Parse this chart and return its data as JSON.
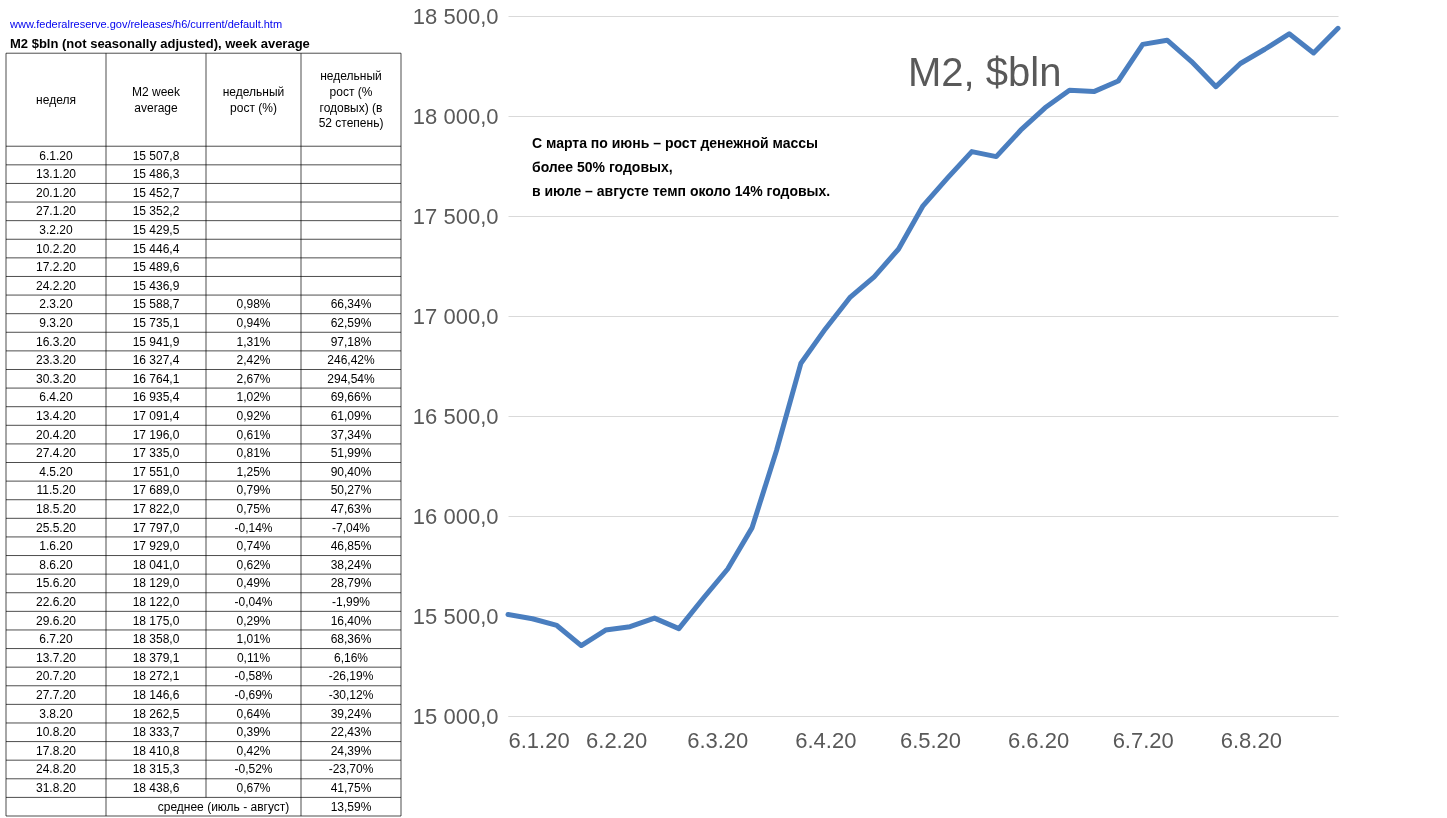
{
  "chart_data": [
    {
      "type": "other",
      "title": "M2 $bln (not seasonally adjusted), week average",
      "xlabel": "неделя",
      "categories": [
        "6.1.20",
        "13.1.20",
        "20.1.20",
        "27.1.20",
        "3.2.20",
        "10.2.20",
        "17.2.20",
        "24.2.20",
        "2.3.20",
        "9.3.20",
        "16.3.20",
        "23.3.20",
        "30.3.20",
        "6.4.20",
        "13.4.20",
        "20.4.20",
        "27.4.20",
        "4.5.20",
        "11.5.20",
        "18.5.20",
        "25.5.20",
        "1.6.20",
        "8.6.20",
        "15.6.20",
        "22.6.20",
        "29.6.20",
        "6.7.20",
        "13.7.20",
        "20.7.20",
        "27.7.20",
        "3.8.20",
        "10.8.20",
        "17.8.20",
        "24.8.20",
        "31.8.20"
      ],
      "series": [
        {
          "name": "M2 week average",
          "values": [
            15507.8,
            15486.3,
            15452.7,
            15352.2,
            15429.5,
            15446.4,
            15489.6,
            15436.9,
            15588.7,
            15735.1,
            15941.9,
            16327.4,
            16764.1,
            16935.4,
            17091.4,
            17196.0,
            17335.0,
            17551.0,
            17689.0,
            17822.0,
            17797.0,
            17929.0,
            18041.0,
            18129.0,
            18122.0,
            18175.0,
            18358.0,
            18379.1,
            18272.1,
            18146.6,
            18262.5,
            18333.7,
            18410.8,
            18315.3,
            18438.6
          ],
          "value_labels": [
            "15 507,8",
            "15 486,3",
            "15 452,7",
            "15 352,2",
            "15 429,5",
            "15 446,4",
            "15 489,6",
            "15 436,9",
            "15 588,7",
            "15 735,1",
            "15 941,9",
            "16 327,4",
            "16 764,1",
            "16 935,4",
            "17 091,4",
            "17 196,0",
            "17 335,0",
            "17 551,0",
            "17 689,0",
            "17 822,0",
            "17 797,0",
            "17 929,0",
            "18 041,0",
            "18 129,0",
            "18 122,0",
            "18 175,0",
            "18 358,0",
            "18 379,1",
            "18 272,1",
            "18 146,6",
            "18 262,5",
            "18 333,7",
            "18 410,8",
            "18 315,3",
            "18 438,6"
          ]
        },
        {
          "name": "недельный рост (%)",
          "values": [
            null,
            null,
            null,
            null,
            null,
            null,
            null,
            null,
            0.98,
            0.94,
            1.31,
            2.42,
            2.67,
            1.02,
            0.92,
            0.61,
            0.81,
            1.25,
            0.79,
            0.75,
            -0.14,
            0.74,
            0.62,
            0.49,
            -0.04,
            0.29,
            1.01,
            0.11,
            -0.58,
            -0.69,
            0.64,
            0.39,
            0.42,
            -0.52,
            0.67
          ],
          "value_labels": [
            null,
            null,
            null,
            null,
            null,
            null,
            null,
            null,
            "0,98%",
            "0,94%",
            "1,31%",
            "2,42%",
            "2,67%",
            "1,02%",
            "0,92%",
            "0,61%",
            "0,81%",
            "1,25%",
            "0,79%",
            "0,75%",
            "-0,14%",
            "0,74%",
            "0,62%",
            "0,49%",
            "-0,04%",
            "0,29%",
            "1,01%",
            "0,11%",
            "-0,58%",
            "-0,69%",
            "0,64%",
            "0,39%",
            "0,42%",
            "-0,52%",
            "0,67%"
          ]
        },
        {
          "name": "недельный рост (% годовых) (в 52 степень)",
          "values": [
            null,
            null,
            null,
            null,
            null,
            null,
            null,
            null,
            66.34,
            62.59,
            97.18,
            246.42,
            294.54,
            69.66,
            61.09,
            37.34,
            51.99,
            90.4,
            50.27,
            47.63,
            -7.04,
            46.85,
            38.24,
            28.79,
            -1.99,
            16.4,
            68.36,
            6.16,
            -26.19,
            -30.12,
            39.24,
            22.43,
            24.39,
            -23.7,
            41.75
          ],
          "value_labels": [
            null,
            null,
            null,
            null,
            null,
            null,
            null,
            null,
            "66,34%",
            "62,59%",
            "97,18%",
            "246,42%",
            "294,54%",
            "69,66%",
            "61,09%",
            "37,34%",
            "51,99%",
            "90,40%",
            "50,27%",
            "47,63%",
            "-7,04%",
            "46,85%",
            "38,24%",
            "28,79%",
            "-1,99%",
            "16,40%",
            "68,36%",
            "6,16%",
            "-26,19%",
            "-30,12%",
            "39,24%",
            "22,43%",
            "24,39%",
            "-23,70%",
            "41,75%"
          ]
        }
      ],
      "annotations": [
        "www.federalreserve.gov/releases/h6/current/default.htm",
        "среднее (июль - август)",
        "13,59%"
      ]
    },
    {
      "type": "line",
      "title": "M2, $bln",
      "grid": "y",
      "marker": "none",
      "line_style": "solid",
      "x": [
        "2020-01-06",
        "2020-01-13",
        "2020-01-20",
        "2020-01-27",
        "2020-02-03",
        "2020-02-10",
        "2020-02-17",
        "2020-02-24",
        "2020-03-02",
        "2020-03-09",
        "2020-03-16",
        "2020-03-23",
        "2020-03-30",
        "2020-04-06",
        "2020-04-13",
        "2020-04-20",
        "2020-04-27",
        "2020-05-04",
        "2020-05-11",
        "2020-05-18",
        "2020-05-25",
        "2020-06-01",
        "2020-06-08",
        "2020-06-15",
        "2020-06-22",
        "2020-06-29",
        "2020-07-06",
        "2020-07-13",
        "2020-07-20",
        "2020-07-27",
        "2020-08-03",
        "2020-08-10",
        "2020-08-17",
        "2020-08-24",
        "2020-08-31"
      ],
      "series": [
        {
          "color": "#4a7ebf",
          "values": [
            15507.8,
            15486.3,
            15452.7,
            15352.2,
            15429.5,
            15446.4,
            15489.6,
            15436.9,
            15588.7,
            15735.1,
            15941.9,
            16327.4,
            16764.1,
            16935.4,
            17091.4,
            17196.0,
            17335.0,
            17551.0,
            17689.0,
            17822.0,
            17797.0,
            17929.0,
            18041.0,
            18129.0,
            18122.0,
            18175.0,
            18358.0,
            18379.1,
            18272.1,
            18146.6,
            18262.5,
            18333.7,
            18410.8,
            18315.3,
            18438.6
          ]
        }
      ],
      "xlim": [
        "2020-01-06",
        "2020-08-31"
      ],
      "xticks": [
        {
          "value": "2020-01-06",
          "label": "6.1.20"
        },
        {
          "value": "2020-02-06",
          "label": "6.2.20"
        },
        {
          "value": "2020-03-06",
          "label": "6.3.20"
        },
        {
          "value": "2020-04-06",
          "label": "6.4.20"
        },
        {
          "value": "2020-05-06",
          "label": "6.5.20"
        },
        {
          "value": "2020-06-06",
          "label": "6.6.20"
        },
        {
          "value": "2020-07-06",
          "label": "6.7.20"
        },
        {
          "value": "2020-08-06",
          "label": "6.8.20"
        }
      ],
      "ylim": [
        15000,
        18500
      ],
      "yticks": [
        {
          "value": 15000,
          "label": "15 000,0"
        },
        {
          "value": 15500,
          "label": "15 500,0"
        },
        {
          "value": 16000,
          "label": "16 000,0"
        },
        {
          "value": 16500,
          "label": "16 500,0"
        },
        {
          "value": 17000,
          "label": "17 000,0"
        },
        {
          "value": 17500,
          "label": "17 500,0"
        },
        {
          "value": 18000,
          "label": "18 000,0"
        },
        {
          "value": 18500,
          "label": "18 500,0"
        }
      ],
      "annotations": [
        "С марта по июнь – рост денежной массы",
        "более 50% годовых,",
        "в июле – августе темп около 14% годовых."
      ]
    }
  ]
}
